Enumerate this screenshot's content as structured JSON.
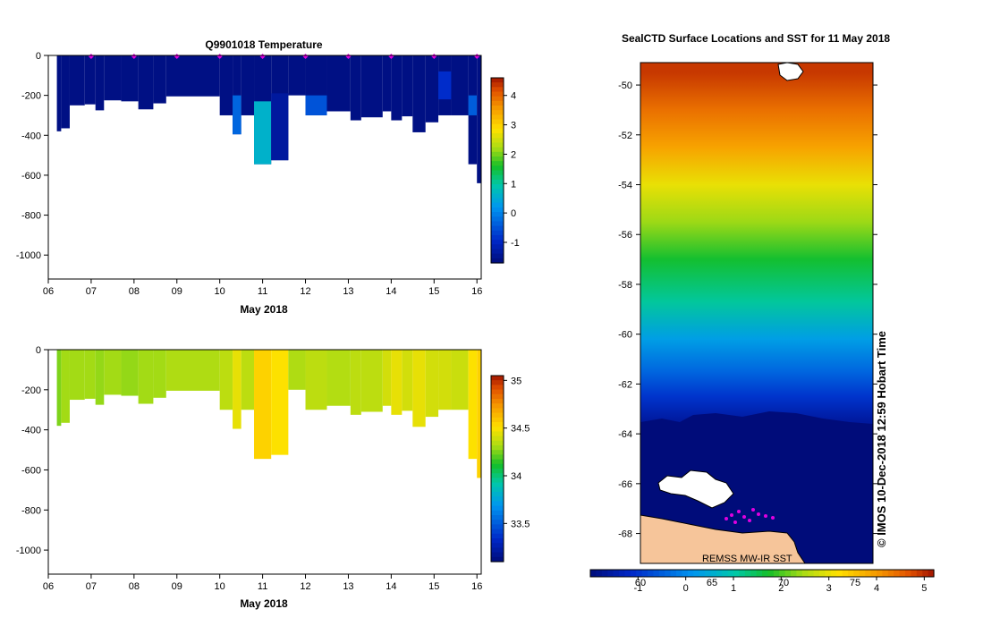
{
  "colors": {
    "deep": "#000c7a",
    "bg": "#ffffff",
    "land": "#f6c59a",
    "marker": "#e000e0"
  },
  "chart_data": [
    {
      "type": "heatmap",
      "id": "temperature",
      "title": "Q9901018  Temperature",
      "xlabel": "May 2018",
      "ylabel": "",
      "x_ticks": [
        "06",
        "07",
        "08",
        "09",
        "10",
        "11",
        "12",
        "13",
        "14",
        "15",
        "16"
      ],
      "x_range": [
        6,
        16.1
      ],
      "y_ticks": [
        0,
        -200,
        -400,
        -600,
        -800,
        -1000
      ],
      "y_range": [
        -1120,
        0
      ],
      "colorbar": {
        "ticks": [
          4,
          3,
          2,
          1,
          0,
          -1
        ],
        "range": [
          -1.7,
          4.6
        ]
      },
      "profile_markers_day": [
        7,
        8,
        9,
        10,
        11,
        12,
        13,
        14,
        15,
        16
      ],
      "profiles": [
        {
          "x0": 6.2,
          "x1": 6.3,
          "depth": 380,
          "value": -1.6
        },
        {
          "x0": 6.3,
          "x1": 6.5,
          "depth": 365,
          "value": -1.6
        },
        {
          "x0": 6.5,
          "x1": 6.85,
          "depth": 250,
          "value": -1.6
        },
        {
          "x0": 6.85,
          "x1": 7.1,
          "depth": 245,
          "value": -1.6
        },
        {
          "x0": 7.1,
          "x1": 7.3,
          "depth": 275,
          "value": -1.6
        },
        {
          "x0": 7.3,
          "x1": 7.7,
          "depth": 225,
          "value": -1.6
        },
        {
          "x0": 7.7,
          "x1": 8.1,
          "depth": 230,
          "value": -1.6
        },
        {
          "x0": 8.1,
          "x1": 8.45,
          "depth": 270,
          "value": -1.6
        },
        {
          "x0": 8.45,
          "x1": 8.75,
          "depth": 240,
          "value": -1.6
        },
        {
          "x0": 8.75,
          "x1": 10.0,
          "depth": 205,
          "value": -1.6
        },
        {
          "x0": 10.0,
          "x1": 10.3,
          "depth": 300,
          "value": -1.6
        },
        {
          "x0": 10.3,
          "x1": 10.5,
          "depth": 395,
          "value": -1.6,
          "accent": {
            "from": 200,
            "to": 395,
            "value": -0.3
          }
        },
        {
          "x0": 10.5,
          "x1": 10.8,
          "depth": 300,
          "value": -1.6
        },
        {
          "x0": 10.8,
          "x1": 11.2,
          "depth": 545,
          "value": -1.6,
          "accent": {
            "from": 230,
            "to": 545,
            "value": 0.6
          }
        },
        {
          "x0": 11.2,
          "x1": 11.6,
          "depth": 525,
          "value": -1.6,
          "accent": {
            "from": 190,
            "to": 525,
            "value": -1.35
          }
        },
        {
          "x0": 11.6,
          "x1": 12.0,
          "depth": 200,
          "value": -1.6
        },
        {
          "x0": 12.0,
          "x1": 12.5,
          "depth": 300,
          "value": -1.6,
          "accent": {
            "from": 200,
            "to": 300,
            "value": -0.5
          }
        },
        {
          "x0": 12.5,
          "x1": 13.05,
          "depth": 280,
          "value": -1.6
        },
        {
          "x0": 13.05,
          "x1": 13.3,
          "depth": 325,
          "value": -1.6
        },
        {
          "x0": 13.3,
          "x1": 13.8,
          "depth": 310,
          "value": -1.6
        },
        {
          "x0": 13.8,
          "x1": 14.0,
          "depth": 280,
          "value": -1.6
        },
        {
          "x0": 14.0,
          "x1": 14.25,
          "depth": 325,
          "value": -1.6
        },
        {
          "x0": 14.25,
          "x1": 14.5,
          "depth": 305,
          "value": -1.6
        },
        {
          "x0": 14.5,
          "x1": 14.8,
          "depth": 385,
          "value": -1.6
        },
        {
          "x0": 14.8,
          "x1": 15.1,
          "depth": 335,
          "value": -1.6
        },
        {
          "x0": 15.1,
          "x1": 15.4,
          "depth": 300,
          "value": -1.6,
          "accent": {
            "from": 80,
            "to": 220,
            "value": -0.9
          }
        },
        {
          "x0": 15.4,
          "x1": 15.8,
          "depth": 300,
          "value": -1.6
        },
        {
          "x0": 15.8,
          "x1": 16.0,
          "depth": 545,
          "value": -1.6,
          "accent": {
            "from": 200,
            "to": 300,
            "value": -0.4
          }
        },
        {
          "x0": 16.0,
          "x1": 16.1,
          "depth": 640,
          "value": -1.6
        }
      ]
    },
    {
      "type": "heatmap",
      "id": "salinity",
      "title": "",
      "xlabel": "May 2018",
      "ylabel": "",
      "x_ticks": [
        "06",
        "07",
        "08",
        "09",
        "10",
        "11",
        "12",
        "13",
        "14",
        "15",
        "16"
      ],
      "x_range": [
        6,
        16.1
      ],
      "y_ticks": [
        0,
        -200,
        -400,
        -600,
        -800,
        -1000
      ],
      "y_range": [
        -1120,
        0
      ],
      "colorbar": {
        "ticks": [
          35,
          34.5,
          34,
          33.5
        ],
        "range": [
          33.1,
          35.05
        ]
      },
      "profiles": [
        {
          "x0": 6.2,
          "x1": 6.3,
          "depth": 380,
          "value": 34.25
        },
        {
          "x0": 6.3,
          "x1": 6.5,
          "depth": 365,
          "value": 34.3
        },
        {
          "x0": 6.5,
          "x1": 6.85,
          "depth": 250,
          "value": 34.3
        },
        {
          "x0": 6.85,
          "x1": 7.1,
          "depth": 245,
          "value": 34.3
        },
        {
          "x0": 7.1,
          "x1": 7.3,
          "depth": 275,
          "value": 34.28
        },
        {
          "x0": 7.3,
          "x1": 7.7,
          "depth": 225,
          "value": 34.3
        },
        {
          "x0": 7.7,
          "x1": 8.1,
          "depth": 230,
          "value": 34.28
        },
        {
          "x0": 8.1,
          "x1": 8.45,
          "depth": 270,
          "value": 34.3
        },
        {
          "x0": 8.45,
          "x1": 8.75,
          "depth": 240,
          "value": 34.3
        },
        {
          "x0": 8.75,
          "x1": 10.0,
          "depth": 205,
          "value": 34.32
        },
        {
          "x0": 10.0,
          "x1": 10.3,
          "depth": 300,
          "value": 34.35
        },
        {
          "x0": 10.3,
          "x1": 10.5,
          "depth": 395,
          "value": 34.45
        },
        {
          "x0": 10.5,
          "x1": 10.8,
          "depth": 300,
          "value": 34.35
        },
        {
          "x0": 10.8,
          "x1": 11.2,
          "depth": 545,
          "value": 34.55
        },
        {
          "x0": 11.2,
          "x1": 11.6,
          "depth": 525,
          "value": 34.5
        },
        {
          "x0": 11.6,
          "x1": 12.0,
          "depth": 200,
          "value": 34.32
        },
        {
          "x0": 12.0,
          "x1": 12.5,
          "depth": 300,
          "value": 34.35
        },
        {
          "x0": 12.5,
          "x1": 13.05,
          "depth": 280,
          "value": 34.33
        },
        {
          "x0": 13.05,
          "x1": 13.3,
          "depth": 325,
          "value": 34.35
        },
        {
          "x0": 13.3,
          "x1": 13.8,
          "depth": 310,
          "value": 34.35
        },
        {
          "x0": 13.8,
          "x1": 14.0,
          "depth": 280,
          "value": 34.4
        },
        {
          "x0": 14.0,
          "x1": 14.25,
          "depth": 325,
          "value": 34.45
        },
        {
          "x0": 14.25,
          "x1": 14.5,
          "depth": 305,
          "value": 34.4
        },
        {
          "x0": 14.5,
          "x1": 14.8,
          "depth": 385,
          "value": 34.45
        },
        {
          "x0": 14.8,
          "x1": 15.1,
          "depth": 335,
          "value": 34.4
        },
        {
          "x0": 15.1,
          "x1": 15.4,
          "depth": 300,
          "value": 34.4
        },
        {
          "x0": 15.4,
          "x1": 15.8,
          "depth": 300,
          "value": 34.38
        },
        {
          "x0": 15.8,
          "x1": 16.0,
          "depth": 545,
          "value": 34.5
        },
        {
          "x0": 16.0,
          "x1": 16.1,
          "depth": 640,
          "value": 34.55
        }
      ]
    },
    {
      "type": "heatmap",
      "id": "sst_map",
      "title": "SealCTD Surface Locations and SST for 11 May 2018",
      "xlabel": "",
      "ylabel": "",
      "y_ticks": [
        -50,
        -52,
        -54,
        -56,
        -58,
        -60,
        -62,
        -64,
        -66,
        -68
      ],
      "y_range": [
        -69.2,
        -49.1
      ],
      "sst_bands": [
        {
          "lat": -49.5,
          "value": 4.9
        },
        {
          "lat": -51,
          "value": 4.4
        },
        {
          "lat": -52.5,
          "value": 3.9
        },
        {
          "lat": -54,
          "value": 3.0
        },
        {
          "lat": -55.5,
          "value": 2.4
        },
        {
          "lat": -57,
          "value": 1.7
        },
        {
          "lat": -58.7,
          "value": 1.1
        },
        {
          "lat": -60.2,
          "value": 0.3
        },
        {
          "lat": -61.5,
          "value": -0.4
        },
        {
          "lat": -62.5,
          "value": -1.0
        },
        {
          "lat": -63.5,
          "value": -1.6
        },
        {
          "lat": -69.2,
          "value": -1.8
        }
      ],
      "colorbar": {
        "ticks": [
          -1,
          0,
          1,
          2,
          3,
          4,
          5
        ],
        "secondary_ticks": [
          60,
          65,
          70,
          75
        ],
        "range": [
          -2,
          5.2
        ]
      },
      "annotations": {
        "source": "REMSS MW-IR SST",
        "side_label": "© IMOS 10-Dec-2018 12:59 Hobart Time"
      }
    }
  ]
}
